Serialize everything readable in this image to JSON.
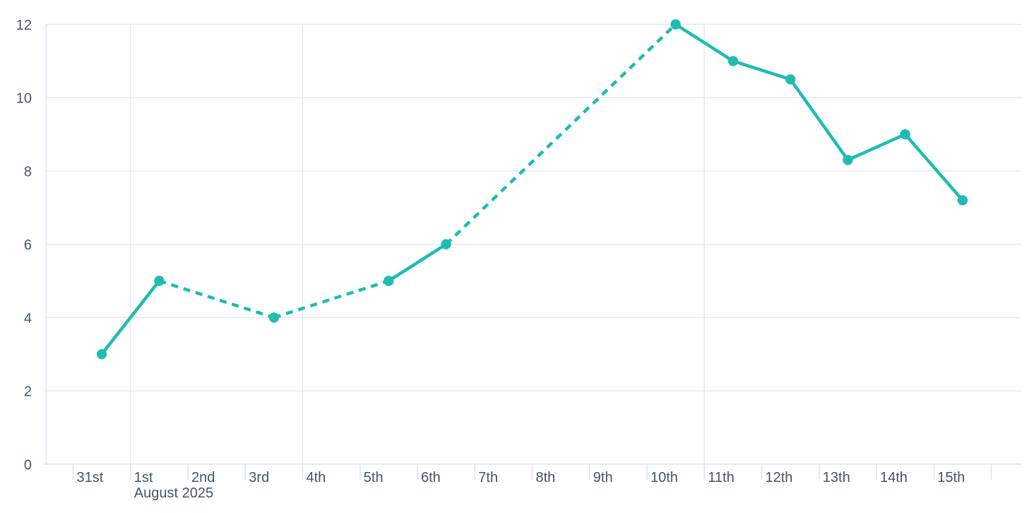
{
  "chart_data": {
    "type": "line",
    "title": "",
    "legend": "none",
    "grid": "on",
    "theme": {
      "series_color": "#1ebcb3",
      "gridline_color": "#e6e9f2",
      "axis_line_color": "#dde2ee",
      "label_color": "#435470",
      "background_color": "#ffffff"
    },
    "x": {
      "axis_type": "datetime-days",
      "month_label": "August 2025",
      "month_label_under_tick": "1st",
      "tick_labels": [
        "31st",
        "1st",
        "2nd",
        "3rd",
        "4th",
        "5th",
        "6th",
        "7th",
        "8th",
        "9th",
        "10th",
        "11th",
        "12th",
        "13th",
        "14th",
        "15th",
        ""
      ],
      "week_gridline_tick_indexes": [
        1,
        4,
        11
      ]
    },
    "y": {
      "min": 0,
      "max": 12,
      "tick_interval": 2,
      "tick_labels": [
        "0",
        "2",
        "4",
        "6",
        "8",
        "10",
        "12"
      ]
    },
    "series": [
      {
        "marker": "circle",
        "color": "#1ebcb3",
        "line_style_rule": "solid between consecutive days, dashed across skipped days",
        "points": [
          {
            "x_label": "31st",
            "day_index": 0,
            "value": 3
          },
          {
            "x_label": "1st",
            "day_index": 1,
            "value": 5
          },
          {
            "x_label": "3rd",
            "day_index": 3,
            "value": 4
          },
          {
            "x_label": "5th",
            "day_index": 5,
            "value": 5
          },
          {
            "x_label": "6th",
            "day_index": 6,
            "value": 6
          },
          {
            "x_label": "10th",
            "day_index": 10,
            "value": 12
          },
          {
            "x_label": "11th",
            "day_index": 11,
            "value": 11
          },
          {
            "x_label": "12th",
            "day_index": 12,
            "value": 10.5
          },
          {
            "x_label": "13th",
            "day_index": 13,
            "value": 8.3
          },
          {
            "x_label": "14th",
            "day_index": 14,
            "value": 9
          },
          {
            "x_label": "15th",
            "day_index": 15,
            "value": 7.2
          }
        ]
      }
    ]
  }
}
